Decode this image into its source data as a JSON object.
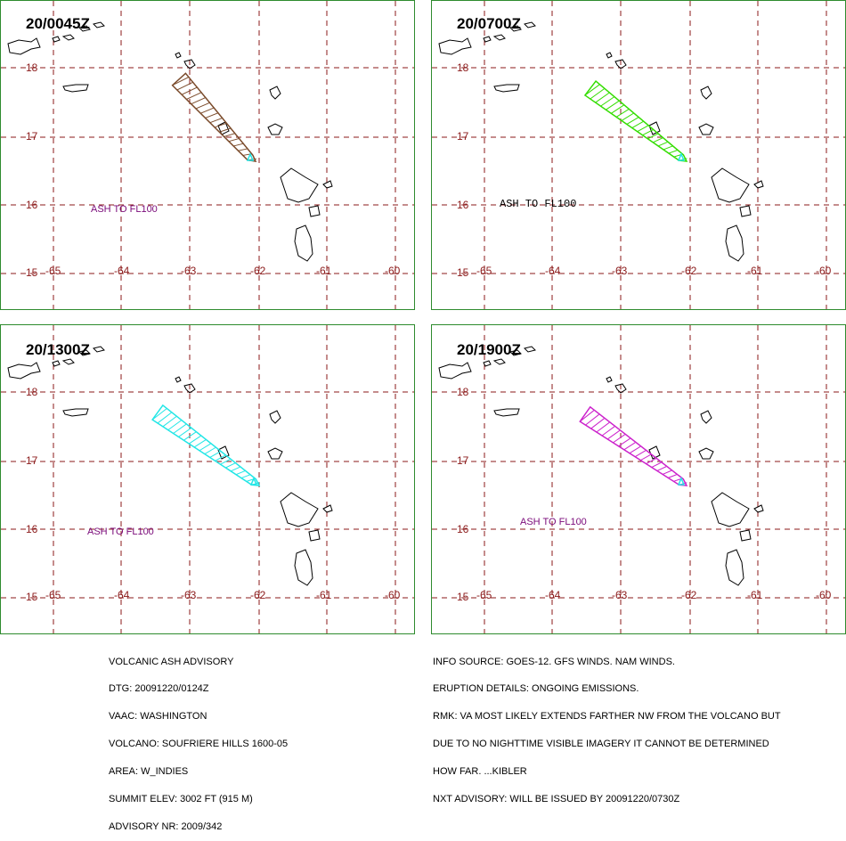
{
  "panels": [
    {
      "time": "20/0045Z",
      "ash_label": "ASH TO FL100",
      "plume_color": "#7a4a2a"
    },
    {
      "time": "20/0700Z",
      "ash_label": "ASH TO FL100",
      "plume_color": "#33dd00"
    },
    {
      "time": "20/1300Z",
      "ash_label": "ASH TO FL100",
      "plume_color": "#22e6e6"
    },
    {
      "time": "20/1900Z",
      "ash_label": "ASH TO FL100",
      "plume_color": "#cc22cc"
    }
  ],
  "grid": {
    "lat_labels": [
      "18",
      "17",
      "16",
      "15"
    ],
    "lon_labels": [
      "-65",
      "-64",
      "-63",
      "-62",
      "-61",
      "-60"
    ],
    "grid_color": "#8b1a1a",
    "frame_color": "#2e8b2e"
  },
  "advisory_left": [
    "VOLCANIC ASH ADVISORY",
    "DTG: 20091220/0124Z",
    "VAAC: WASHINGTON",
    "VOLCANO: SOUFRIERE HILLS 1600-05",
    "AREA: W_INDIES",
    "SUMMIT ELEV: 3002 FT (915 M)",
    "ADVISORY NR: 2009/342"
  ],
  "advisory_right": [
    "INFO SOURCE: GOES-12. GFS WINDS. NAM WINDS.",
    "ERUPTION DETAILS: ONGOING EMISSIONS.",
    "RMK: VA MOST LIKELY EXTENDS FARTHER NW FROM THE VOLCANO BUT",
    "DUE TO NO NIGHTTIME VISIBLE IMAGERY IT CANNOT BE DETERMINED",
    "HOW FAR. ...KIBLER",
    "NXT ADVISORY: WILL BE ISSUED BY 20091220/0730Z"
  ]
}
